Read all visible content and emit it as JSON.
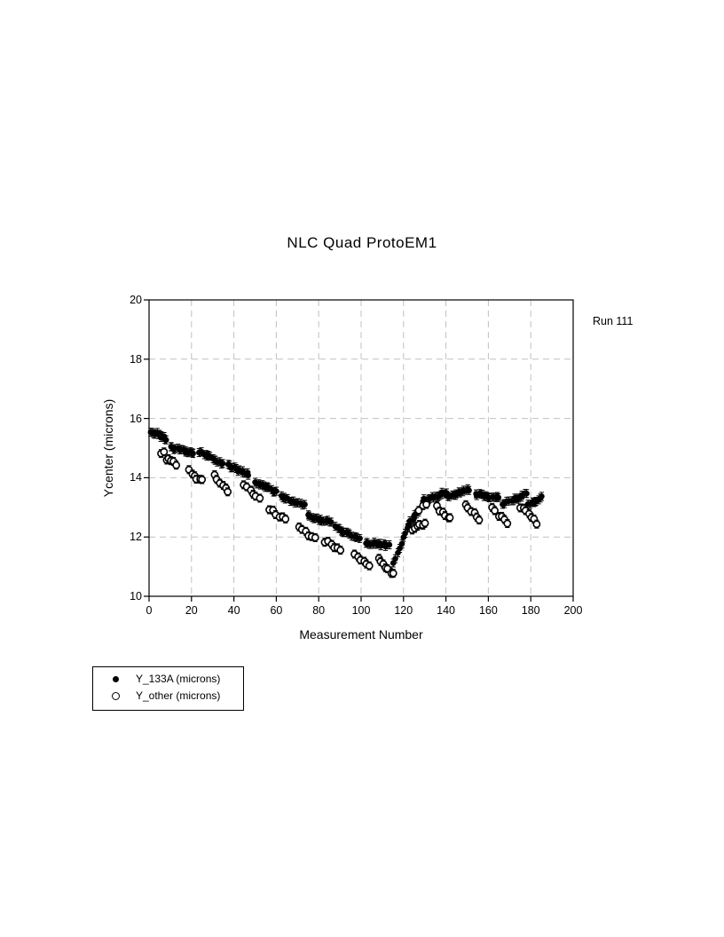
{
  "window": {
    "background": "#ffffff"
  },
  "chart_data": {
    "type": "scatter",
    "title": "NLC Quad ProtoEM1",
    "annotation": "Run 111",
    "xlabel": "Measurement Number",
    "ylabel": "Ycenter (microns)",
    "xlim": [
      0,
      200
    ],
    "ylim": [
      10,
      20
    ],
    "x_ticks": [
      0,
      20,
      40,
      60,
      80,
      100,
      120,
      140,
      160,
      180,
      200
    ],
    "y_ticks": [
      10,
      12,
      14,
      16,
      18,
      20
    ],
    "grid": {
      "style": "dashed",
      "color": "#c0c0c0",
      "x_lines": [
        20,
        40,
        60,
        80,
        100,
        120,
        140,
        160,
        180
      ],
      "y_lines": [
        12,
        14,
        16,
        18
      ]
    },
    "marker_color": "#000000",
    "legend": {
      "boxed": true,
      "position": "below-plot-left"
    },
    "series": [
      {
        "name": "Y_133A (microns)",
        "marker": "filled-circle",
        "color": "#000000",
        "cluster_format": [
          "x_start",
          "x_end",
          "y_start",
          "y_end",
          "n_points"
        ],
        "clusters": [
          [
            1,
            8,
            15.58,
            15.3,
            12
          ],
          [
            10,
            21,
            15.02,
            14.84,
            14
          ],
          [
            24,
            35,
            14.87,
            14.46,
            14
          ],
          [
            37,
            47,
            14.42,
            14.1,
            13
          ],
          [
            50,
            60,
            13.87,
            13.5,
            13
          ],
          [
            62,
            73,
            13.37,
            13.05,
            14
          ],
          [
            75,
            86,
            12.72,
            12.48,
            14
          ],
          [
            88,
            99,
            12.32,
            11.92,
            14
          ],
          [
            102,
            113,
            11.82,
            11.7,
            14
          ],
          [
            114,
            122,
            10.9,
            12.34,
            9
          ],
          [
            122,
            127,
            12.38,
            12.85,
            8
          ],
          [
            129,
            140,
            13.22,
            13.52,
            14
          ],
          [
            141,
            151,
            13.35,
            13.6,
            13
          ],
          [
            154,
            165,
            13.45,
            13.32,
            14
          ],
          [
            167,
            178,
            13.1,
            13.45,
            13
          ],
          [
            179,
            185,
            13.08,
            13.35,
            9
          ]
        ]
      },
      {
        "name": "Y_other (microns)",
        "marker": "open-circle",
        "color": "#000000",
        "cluster_format": [
          "x_start",
          "x_end",
          "y_start",
          "y_end",
          "n_points"
        ],
        "clusters": [
          [
            6,
            7,
            14.88,
            14.84,
            2
          ],
          [
            8,
            13,
            14.62,
            14.45,
            5
          ],
          [
            19,
            25,
            14.22,
            13.88,
            6
          ],
          [
            31,
            37,
            14.05,
            13.58,
            6
          ],
          [
            45,
            52,
            13.72,
            13.32,
            6
          ],
          [
            57,
            64,
            12.98,
            12.57,
            6
          ],
          [
            71,
            78,
            12.33,
            11.92,
            6
          ],
          [
            83,
            90,
            11.88,
            11.52,
            6
          ],
          [
            97,
            104,
            11.43,
            11.02,
            6
          ],
          [
            108,
            115,
            11.3,
            10.72,
            7
          ],
          [
            124,
            130,
            12.25,
            12.52,
            6
          ],
          [
            127,
            131,
            12.95,
            13.05,
            3
          ],
          [
            136,
            142,
            13.0,
            12.62,
            6
          ],
          [
            149,
            156,
            13.02,
            12.58,
            6
          ],
          [
            162,
            169,
            12.95,
            12.45,
            6
          ],
          [
            175,
            183,
            13.02,
            12.48,
            7
          ]
        ]
      }
    ]
  }
}
